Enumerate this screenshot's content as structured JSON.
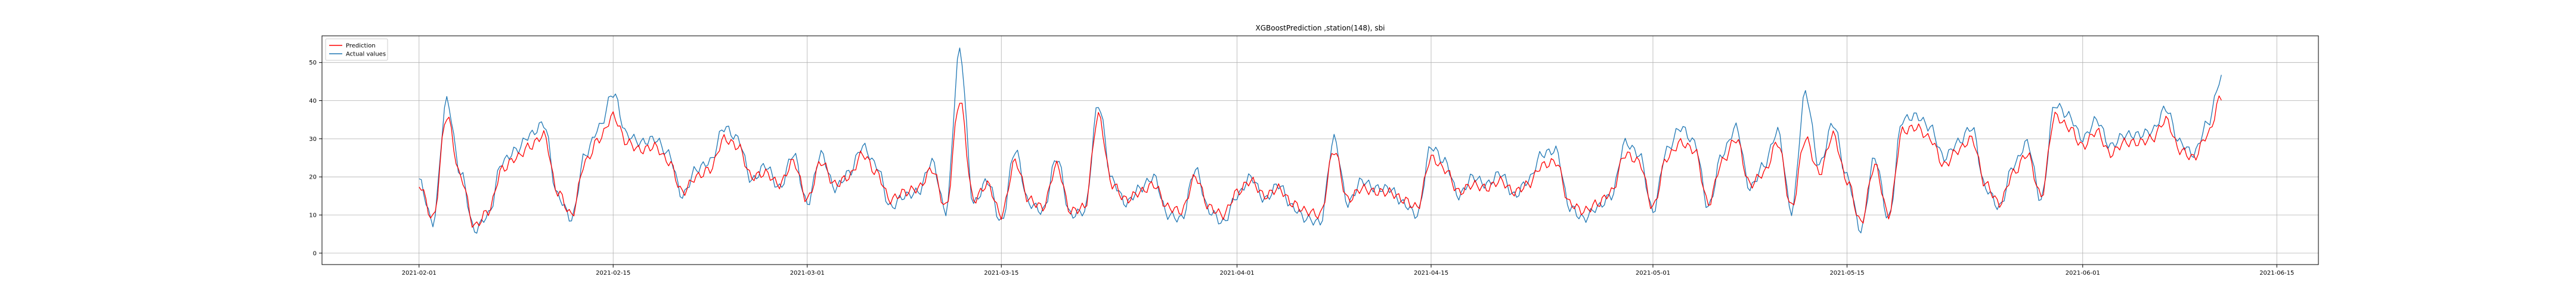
{
  "chart_data": {
    "type": "line",
    "title": "XGBoostPrediction ,station(148), sbi",
    "xlabel": "",
    "ylabel": "",
    "x_range": [
      "2021-01-25",
      "2021-06-18"
    ],
    "ylim": [
      -3,
      57
    ],
    "x_ticks": [
      "2021-02-01",
      "2021-02-15",
      "2021-03-01",
      "2021-03-15",
      "2021-04-01",
      "2021-04-15",
      "2021-05-01",
      "2021-05-15",
      "2021-06-01",
      "2021-06-15"
    ],
    "y_ticks": [
      0,
      10,
      20,
      30,
      40,
      50
    ],
    "grid": true,
    "legend_position": "top-left",
    "x_start": "2021-02-01",
    "x_end": "2021-06-11",
    "sample_interval_hours": 24,
    "series": [
      {
        "name": "Prediction",
        "color": "#ff0000",
        "values": [
          18,
          9,
          36,
          20,
          7,
          11,
          22,
          25,
          28,
          31,
          16,
          10,
          24,
          30,
          36,
          29,
          27,
          28,
          24,
          16,
          20,
          22,
          30,
          28,
          20,
          21,
          18,
          24,
          14,
          24,
          18,
          20,
          26,
          21,
          14,
          16,
          17,
          22,
          12,
          40,
          14,
          18,
          10,
          24,
          14,
          12,
          23,
          11,
          12,
          36,
          18,
          14,
          16,
          18,
          12,
          11,
          20,
          12,
          10,
          16,
          19,
          15,
          17,
          13,
          11,
          10,
          27,
          14,
          17,
          16,
          16,
          14,
          12,
          25,
          22,
          16,
          18,
          17,
          19,
          16,
          18,
          23,
          24,
          13,
          11,
          13,
          16,
          26,
          24,
          12,
          25,
          29,
          27,
          13,
          24,
          30,
          18,
          21,
          29,
          12,
          30,
          21,
          31,
          19,
          8,
          23,
          10,
          32,
          33,
          30,
          23,
          27,
          30,
          18,
          13,
          21,
          26,
          15,
          36,
          33,
          28,
          32,
          26,
          29,
          29,
          30,
          35,
          27,
          25,
          31,
          41
        ]
      },
      {
        "name": "Actual values",
        "color": "#1f77b4",
        "values": [
          19,
          8,
          40,
          21,
          6,
          10,
          24,
          27,
          31,
          34,
          15,
          9,
          26,
          33,
          42,
          31,
          29,
          30,
          26,
          15,
          22,
          24,
          33,
          30,
          19,
          23,
          17,
          26,
          13,
          26,
          17,
          21,
          28,
          23,
          12,
          15,
          16,
          24,
          11,
          53,
          13,
          19,
          8,
          27,
          13,
          11,
          25,
          10,
          11,
          39,
          19,
          13,
          17,
          20,
          10,
          9,
          22,
          11,
          8,
          15,
          20,
          14,
          18,
          12,
          9,
          8,
          30,
          13,
          19,
          17,
          17,
          13,
          10,
          28,
          24,
          15,
          20,
          18,
          21,
          15,
          19,
          26,
          27,
          12,
          9,
          12,
          15,
          29,
          26,
          11,
          27,
          33,
          29,
          12,
          26,
          33,
          17,
          23,
          32,
          11,
          42,
          23,
          34,
          20,
          6,
          25,
          9,
          35,
          36,
          33,
          25,
          29,
          33,
          17,
          12,
          23,
          29,
          14,
          39,
          36,
          30,
          35,
          28,
          31,
          31,
          32,
          38,
          29,
          26,
          34,
          46
        ]
      }
    ]
  }
}
